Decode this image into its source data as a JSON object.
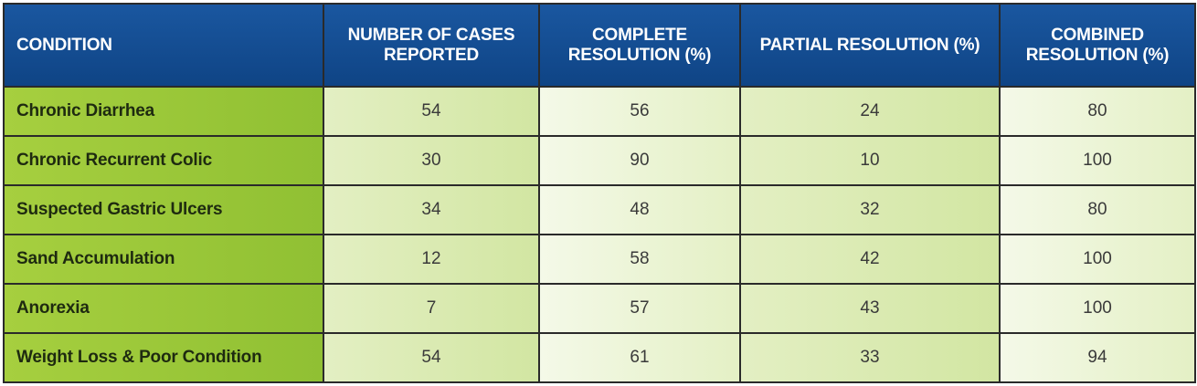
{
  "table": {
    "headers": [
      {
        "line1": "CONDITION",
        "line2": ""
      },
      {
        "line1": "NUMBER OF CASES",
        "line2": "REPORTED"
      },
      {
        "line1": "COMPLETE",
        "line2": "RESOLUTION (%)"
      },
      {
        "line1": "PARTIAL RESOLUTION (%)",
        "line2": ""
      },
      {
        "line1": "COMBINED",
        "line2": "RESOLUTION (%)"
      }
    ],
    "rows": [
      {
        "condition": "Chronic Diarrhea",
        "cases": "54",
        "complete": "56",
        "partial": "24",
        "combined": "80"
      },
      {
        "condition": "Chronic Recurrent Colic",
        "cases": "30",
        "complete": "90",
        "partial": "10",
        "combined": "100"
      },
      {
        "condition": "Suspected Gastric Ulcers",
        "cases": "34",
        "complete": "48",
        "partial": "32",
        "combined": "80"
      },
      {
        "condition": "Sand Accumulation",
        "cases": "12",
        "complete": "58",
        "partial": "42",
        "combined": "100"
      },
      {
        "condition": "Anorexia",
        "cases": "7",
        "complete": "57",
        "partial": "43",
        "combined": "100"
      },
      {
        "condition": "Weight Loss & Poor Condition",
        "cases": "54",
        "complete": "61",
        "partial": "33",
        "combined": "94"
      }
    ]
  },
  "colors": {
    "header_blue": "#124a8c",
    "condition_green": "#9dc93a",
    "cell_light_green": "#d9eab0",
    "cell_pale_green": "#eef6dc",
    "border": "#2a2a2a"
  }
}
